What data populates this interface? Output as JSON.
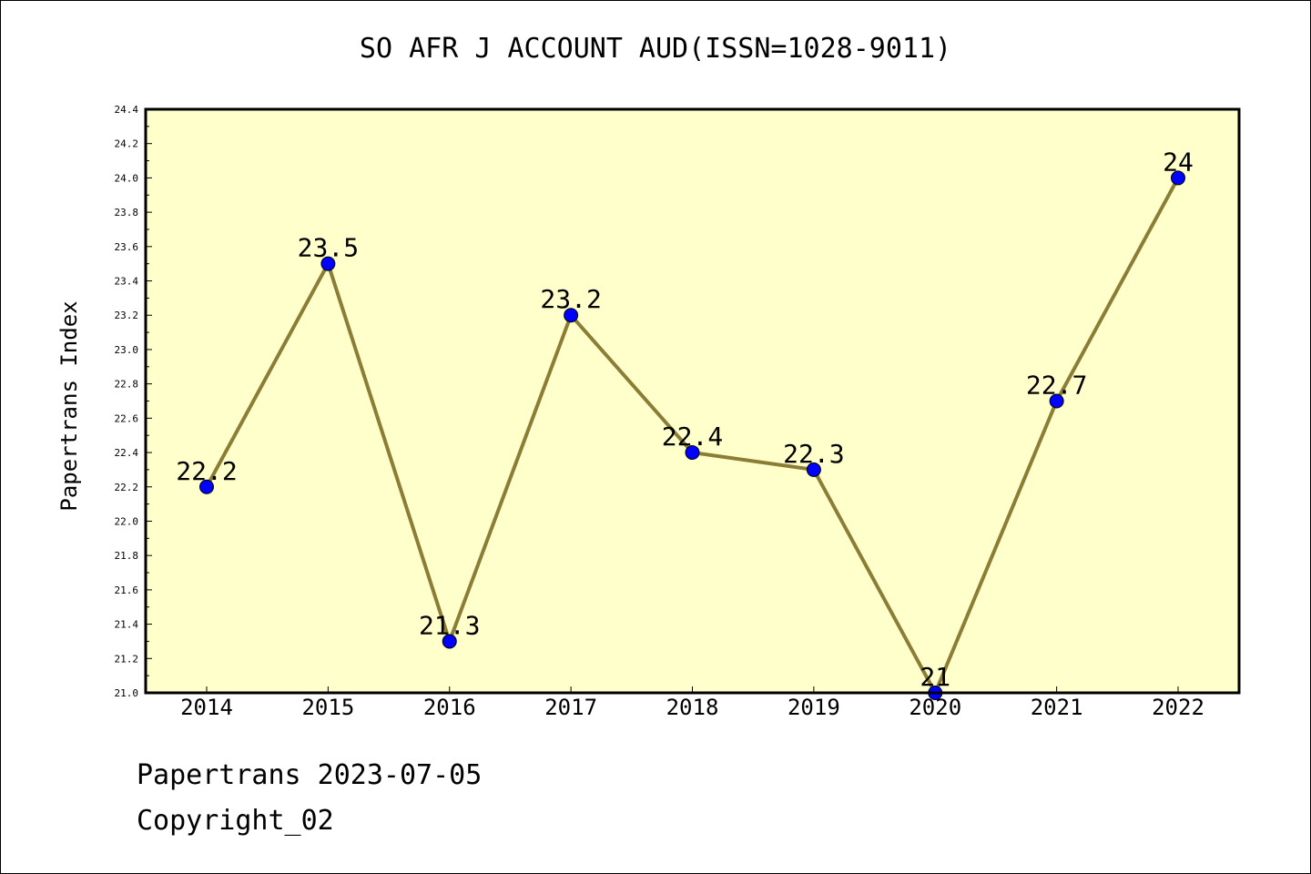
{
  "chart_data": {
    "type": "line",
    "title": "SO AFR J ACCOUNT AUD(ISSN=1028-9011)",
    "xlabel": "",
    "ylabel": "Papertrans Index",
    "categories": [
      "2014",
      "2015",
      "2016",
      "2017",
      "2018",
      "2019",
      "2020",
      "2021",
      "2022"
    ],
    "values": [
      22.2,
      23.5,
      21.3,
      23.2,
      22.4,
      22.3,
      21,
      22.7,
      24
    ],
    "data_labels": [
      "22.2",
      "23.5",
      "21.3",
      "23.2",
      "22.4",
      "22.3",
      "21",
      "22.7",
      "24"
    ],
    "ylim": [
      21.0,
      24.4
    ],
    "yticks": [
      "21.0",
      "21.2",
      "21.4",
      "21.6",
      "21.8",
      "22.0",
      "22.2",
      "22.4",
      "22.6",
      "22.8",
      "23.0",
      "23.2",
      "23.4",
      "23.6",
      "23.8",
      "24.0",
      "24.2",
      "24.4"
    ],
    "grid": false,
    "legend": "none",
    "colors": {
      "plot_background": "#ffffcc",
      "line": "#8b7d35",
      "marker": "#0000ff"
    }
  },
  "footer": {
    "date_line": "Papertrans 2023-07-05",
    "copyright_line": "Copyright_02"
  }
}
